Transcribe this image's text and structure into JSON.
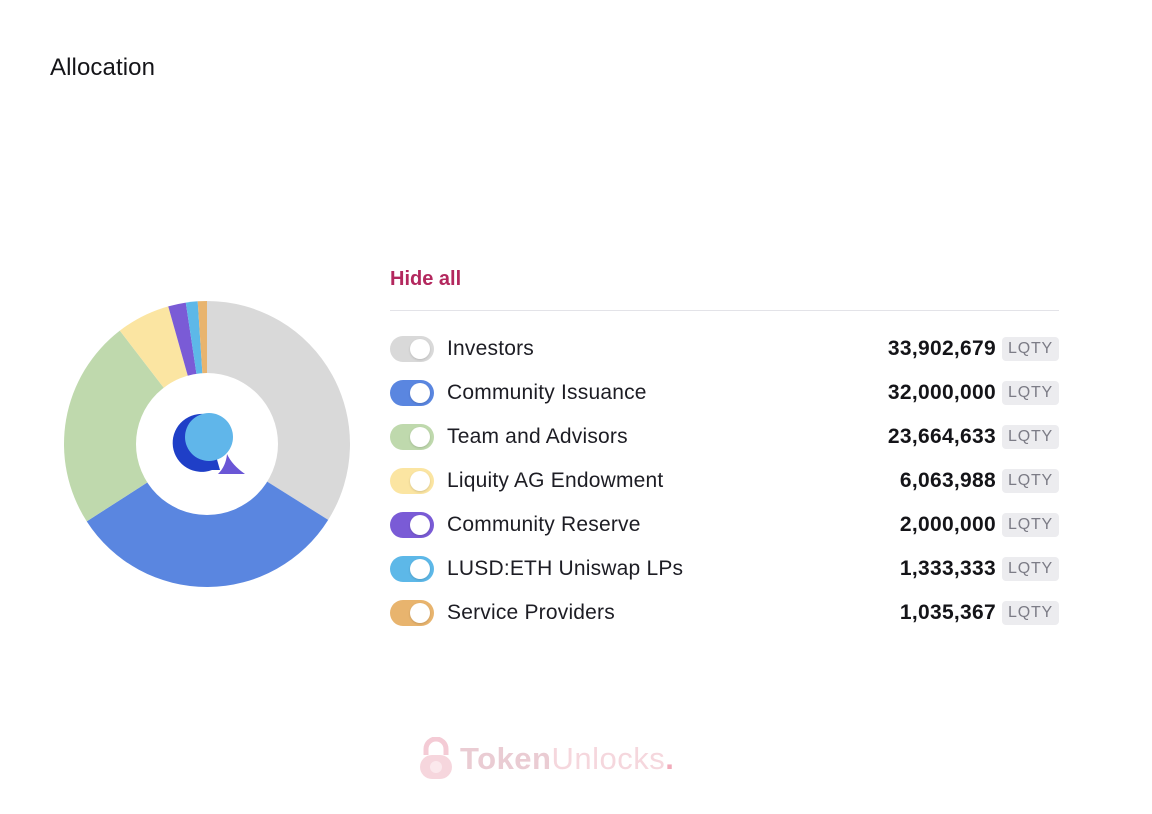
{
  "page": {
    "title": "Allocation"
  },
  "legend": {
    "hide_all_label": "Hide all"
  },
  "chart_data": {
    "type": "pie",
    "donut": true,
    "unit": "LQTY",
    "categories": [
      "Investors",
      "Community Issuance",
      "Team and Advisors",
      "Liquity AG Endowment",
      "Community Reserve",
      "LUSD:ETH Uniswap LPs",
      "Service Providers"
    ],
    "values": [
      33902679,
      32000000,
      23664633,
      6063988,
      2000000,
      1333333,
      1035367
    ],
    "display_values": [
      "33,902,679",
      "32,000,000",
      "23,664,633",
      "6,063,988",
      "2,000,000",
      "1,333,333",
      "1,035,367"
    ],
    "colors": [
      "#d9d9d9",
      "#5a86e0",
      "#bfd9ad",
      "#fbe5a2",
      "#7a5bd6",
      "#5db8e8",
      "#e8b46e"
    ],
    "center_icon": "liquity-logo",
    "legend_position": "right"
  },
  "watermark": {
    "icon": "lock-icon",
    "text_bold": "Token",
    "text_light": "Unlocks",
    "dot": "."
  }
}
